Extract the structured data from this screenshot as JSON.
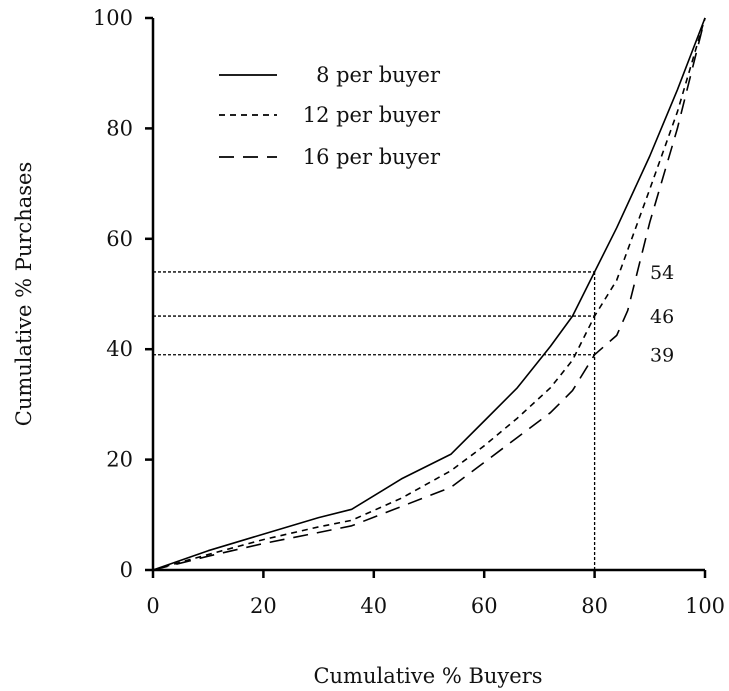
{
  "chart_data": {
    "type": "line",
    "title": "",
    "xlabel": "Cumulative % Buyers",
    "ylabel": "Cumulative % Purchases",
    "xlim": [
      0,
      100
    ],
    "ylim": [
      0,
      100
    ],
    "xticks": [
      "0",
      "20",
      "40",
      "60",
      "80",
      "100"
    ],
    "yticks": [
      "0",
      "20",
      "40",
      "60",
      "80",
      "100"
    ],
    "grid": false,
    "legend_position": "top-left",
    "series": [
      {
        "name": "8 per buyer",
        "style": "solid",
        "x": [
          0,
          10,
          20,
          30,
          36,
          45,
          54,
          60,
          66,
          72,
          76,
          80,
          84,
          90,
          95,
          100
        ],
        "y": [
          0,
          3.5,
          6.5,
          9.5,
          11,
          16.5,
          21,
          27,
          33,
          40.5,
          46,
          54,
          62,
          75,
          87,
          100
        ]
      },
      {
        "name": "12 per buyer",
        "style": "short-dash",
        "x": [
          0,
          10,
          20,
          30,
          36,
          45,
          54,
          60,
          66,
          72,
          76,
          80,
          84,
          90,
          95,
          100
        ],
        "y": [
          0,
          2.8,
          5.5,
          7.8,
          9,
          13,
          18,
          22.5,
          27.5,
          33,
          38,
          46,
          52.5,
          69,
          83,
          100
        ]
      },
      {
        "name": "16 per buyer",
        "style": "long-dash",
        "x": [
          0,
          10,
          20,
          30,
          36,
          45,
          54,
          60,
          66,
          72,
          76,
          80,
          84,
          86,
          90,
          95,
          100
        ],
        "y": [
          0,
          2.5,
          4.8,
          6.8,
          8,
          11.5,
          15,
          19.5,
          24,
          28.5,
          32.5,
          39,
          42.5,
          47,
          63,
          80,
          100
        ]
      }
    ],
    "reference_lines": [
      {
        "type": "vertical",
        "x": 80,
        "y_to": 54,
        "style": "dotted"
      },
      {
        "type": "horizontal",
        "y": 54,
        "x_to": 80,
        "style": "dotted",
        "label": "54"
      },
      {
        "type": "horizontal",
        "y": 46,
        "x_to": 80,
        "style": "dotted",
        "label": "46"
      },
      {
        "type": "horizontal",
        "y": 39,
        "x_to": 80,
        "style": "dotted",
        "label": "39"
      }
    ]
  }
}
